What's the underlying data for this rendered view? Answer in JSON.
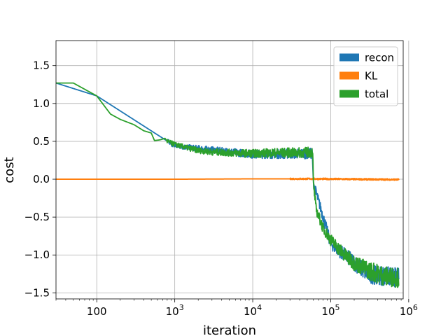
{
  "chart_data": {
    "type": "line",
    "xlabel": "iteration",
    "ylabel": "cost",
    "xscale": "log",
    "xlim": [
      30,
      850000
    ],
    "ylim": [
      -1.58,
      1.83
    ],
    "grid": true,
    "legend_placement": "top-right",
    "x_ticks": [
      {
        "value": 100,
        "label": "100"
      },
      {
        "value": 1000,
        "base": "10",
        "exp": "3"
      },
      {
        "value": 10000,
        "base": "10",
        "exp": "4"
      },
      {
        "value": 100000,
        "base": "10",
        "exp": "5"
      },
      {
        "value": 1000000,
        "base": "10",
        "exp": "6"
      }
    ],
    "y_ticks": [
      {
        "value": 1.5,
        "label": "1.5"
      },
      {
        "value": 1.0,
        "label": "1.0"
      },
      {
        "value": 0.5,
        "label": "0.5"
      },
      {
        "value": 0.0,
        "label": "0.0"
      },
      {
        "value": -0.5,
        "label": "−0.5"
      },
      {
        "value": -1.0,
        "label": "−1.0"
      },
      {
        "value": -1.5,
        "label": "−1.5"
      }
    ],
    "series": [
      {
        "name": "recon",
        "color": "#1f77b4",
        "x": [
          30,
          100,
          1000,
          10000,
          58000,
          60000,
          100000,
          300000,
          750000
        ],
        "y": [
          1.27,
          1.1,
          0.44,
          0.33,
          0.34,
          -0.05,
          -0.85,
          -1.25,
          -1.3
        ]
      },
      {
        "name": "KL",
        "color": "#ff7f0e",
        "x": [
          30,
          100,
          1000,
          10000,
          60000,
          200000,
          750000
        ],
        "y": [
          0.0,
          0.0,
          0.0,
          0.005,
          0.005,
          0.0,
          -0.005
        ]
      },
      {
        "name": "total",
        "color": "#2ca02c",
        "x": [
          30,
          50,
          100,
          150,
          200,
          300,
          400,
          500,
          550,
          650,
          750,
          800,
          1000,
          1500,
          2000,
          3000,
          5000,
          10000,
          20000,
          40000,
          58000,
          59000,
          60000,
          65000,
          80000,
          100000,
          150000,
          200000,
          300000,
          500000,
          750000
        ],
        "y": [
          1.27,
          1.27,
          1.1,
          0.86,
          0.79,
          0.72,
          0.64,
          0.61,
          0.51,
          0.52,
          0.54,
          0.5,
          0.46,
          0.41,
          0.38,
          0.36,
          0.35,
          0.34,
          0.35,
          0.35,
          0.36,
          0.33,
          -0.05,
          -0.4,
          -0.65,
          -0.8,
          -1.0,
          -1.1,
          -1.2,
          -1.28,
          -1.3
        ]
      }
    ]
  }
}
